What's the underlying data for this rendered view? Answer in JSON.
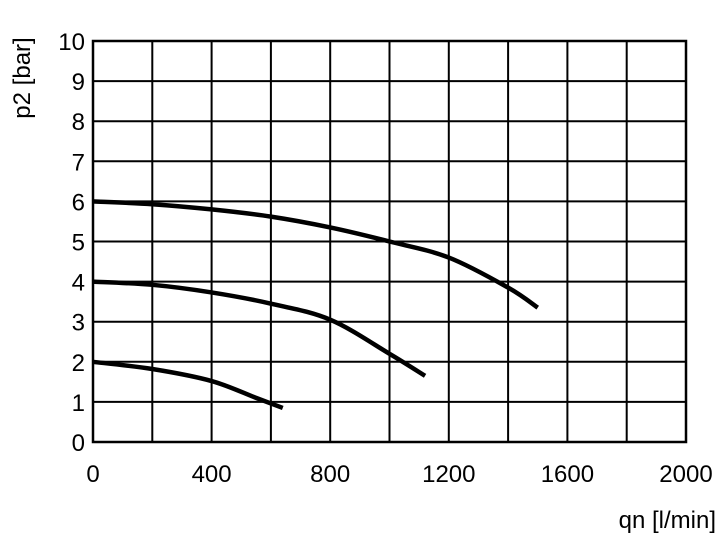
{
  "chart_data": {
    "type": "line",
    "title": "",
    "xlabel": "qn [l/min]",
    "ylabel": "p2 [bar]",
    "xlim": [
      0,
      2000
    ],
    "ylim": [
      0,
      10
    ],
    "x_ticks": [
      0,
      200,
      400,
      600,
      800,
      1000,
      1200,
      1400,
      1600,
      1800,
      2000
    ],
    "x_tick_labels": [
      "0",
      "400",
      "800",
      "1200",
      "1600",
      "2000"
    ],
    "y_ticks": [
      0,
      1,
      2,
      3,
      4,
      5,
      6,
      7,
      8,
      9,
      10
    ],
    "y_tick_labels": [
      "0",
      "1",
      "2",
      "3",
      "4",
      "5",
      "6",
      "7",
      "8",
      "9",
      "10"
    ],
    "grid": true,
    "line_color": "#000000",
    "series": [
      {
        "x": [
          0,
          200,
          400,
          600,
          800,
          1000,
          1200,
          1400,
          1500
        ],
        "y": [
          6.0,
          5.93,
          5.8,
          5.62,
          5.35,
          5.0,
          4.6,
          3.85,
          3.35
        ]
      },
      {
        "x": [
          0,
          200,
          400,
          600,
          800,
          1000,
          1120
        ],
        "y": [
          4.0,
          3.92,
          3.73,
          3.45,
          3.05,
          2.2,
          1.65
        ]
      },
      {
        "x": [
          0,
          200,
          400,
          550,
          640
        ],
        "y": [
          2.0,
          1.82,
          1.52,
          1.1,
          0.85
        ]
      }
    ]
  }
}
